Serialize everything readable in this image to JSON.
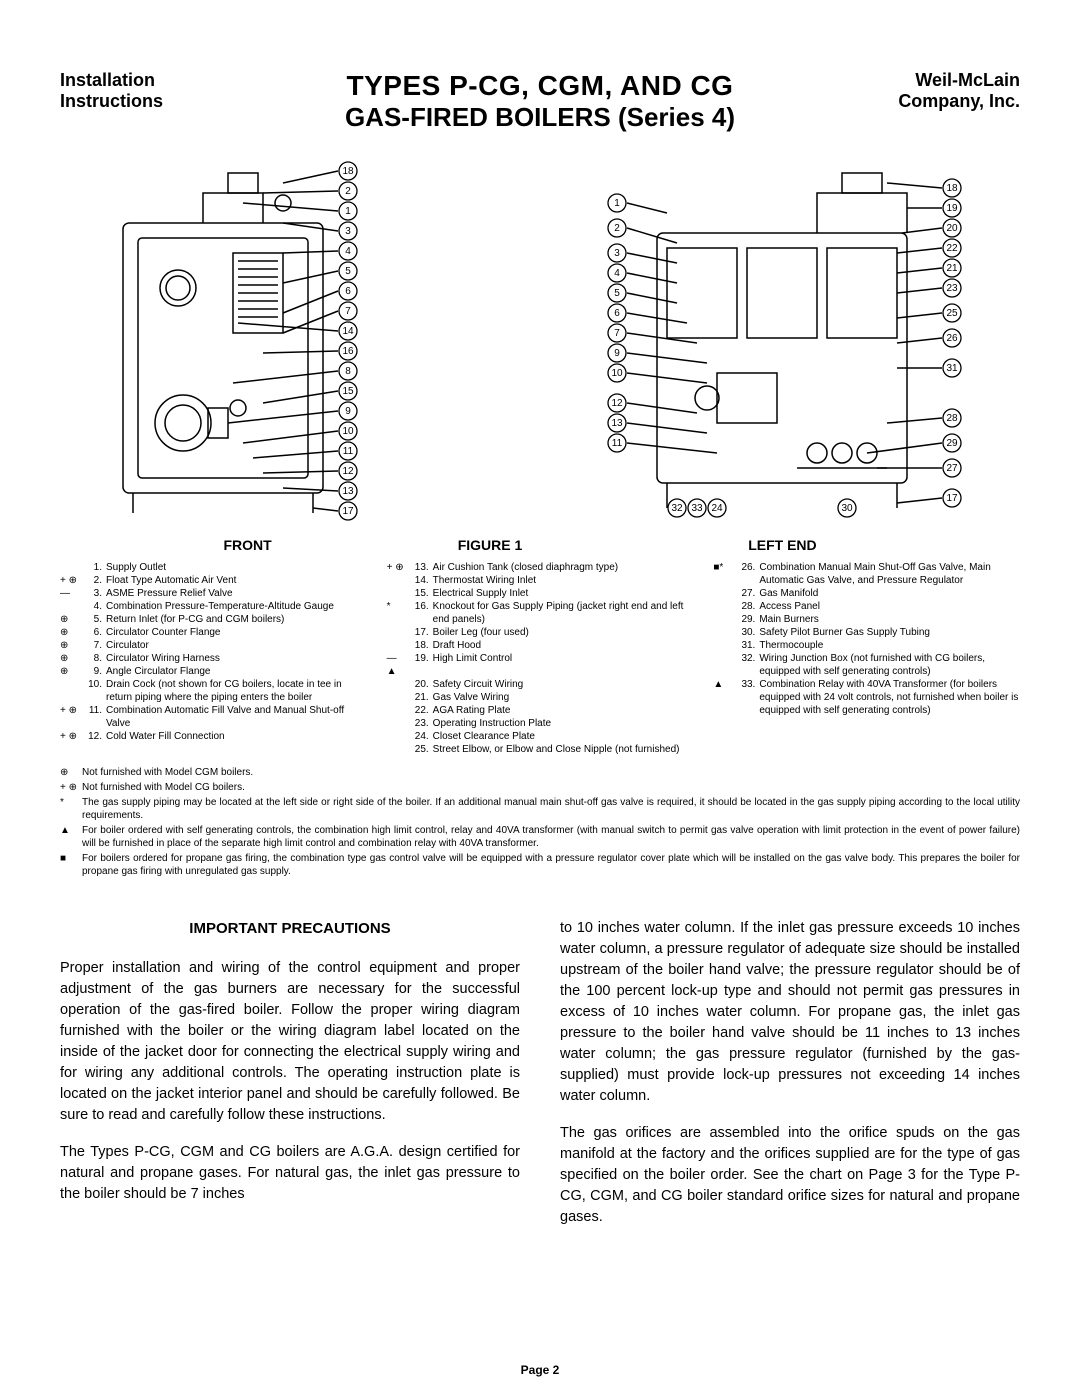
{
  "header": {
    "left_line1": "Installation",
    "left_line2": "Instructions",
    "title1": "TYPES P-CG, CGM, AND CG",
    "title2": "GAS-FIRED BOILERS (Series 4)",
    "right_line1": "Weil-McLain",
    "right_line2": "Company, Inc."
  },
  "figure_labels": {
    "front": "FRONT",
    "center": "FIGURE 1",
    "left_end": "LEFT END"
  },
  "front_callouts": [
    18,
    2,
    1,
    3,
    4,
    5,
    6,
    7,
    14,
    16,
    8,
    15,
    9,
    10,
    11,
    12,
    13,
    17
  ],
  "leftend_left_callouts": [
    1,
    2,
    3,
    4,
    5,
    6,
    7,
    9,
    10,
    12,
    13,
    11,
    32,
    33,
    24
  ],
  "leftend_right_callouts": [
    18,
    19,
    20,
    22,
    21,
    23,
    25,
    26,
    31,
    28,
    29,
    27,
    17,
    30
  ],
  "parts": {
    "col1": [
      {
        "sym": "",
        "num": "1.",
        "txt": "Supply Outlet"
      },
      {
        "sym": "+ ⊕",
        "num": "2.",
        "txt": "Float Type Automatic Air Vent"
      },
      {
        "sym": "—",
        "num": "3.",
        "txt": "ASME Pressure Relief Valve"
      },
      {
        "sym": "",
        "num": "4.",
        "txt": "Combination Pressure-Temperature-Altitude Gauge"
      },
      {
        "sym": "⊕",
        "num": "5.",
        "txt": "Return Inlet (for P-CG and CGM boilers)"
      },
      {
        "sym": "⊕",
        "num": "6.",
        "txt": "Circulator Counter Flange"
      },
      {
        "sym": "⊕",
        "num": "7.",
        "txt": "Circulator"
      },
      {
        "sym": "⊕",
        "num": "8.",
        "txt": "Circulator Wiring Harness"
      },
      {
        "sym": "⊕",
        "num": "9.",
        "txt": "Angle Circulator Flange"
      },
      {
        "sym": "",
        "num": "10.",
        "txt": "Drain Cock (not shown for CG boilers, locate in tee in return piping where the piping enters the boiler"
      },
      {
        "sym": "+ ⊕",
        "num": "11.",
        "txt": "Combination Automatic Fill Valve and Manual Shut-off Valve"
      },
      {
        "sym": "+ ⊕",
        "num": "12.",
        "txt": "Cold Water Fill Connection"
      }
    ],
    "col2": [
      {
        "sym": "+ ⊕",
        "num": "13.",
        "txt": "Air Cushion Tank (closed diaphragm type)"
      },
      {
        "sym": "",
        "num": "14.",
        "txt": "Thermostat Wiring Inlet"
      },
      {
        "sym": "",
        "num": "15.",
        "txt": "Electrical Supply Inlet"
      },
      {
        "sym": "*",
        "num": "16.",
        "txt": "Knockout for Gas Supply Piping (jacket right end and left end panels)"
      },
      {
        "sym": "",
        "num": "17.",
        "txt": "Boiler Leg (four used)"
      },
      {
        "sym": "",
        "num": "18.",
        "txt": "Draft Hood"
      },
      {
        "sym": "— ▲",
        "num": "19.",
        "txt": "High Limit Control"
      },
      {
        "sym": "",
        "num": "20.",
        "txt": "Safety Circuit Wiring"
      },
      {
        "sym": "",
        "num": "21.",
        "txt": "Gas Valve Wiring"
      },
      {
        "sym": "",
        "num": "22.",
        "txt": "AGA Rating Plate"
      },
      {
        "sym": "",
        "num": "23.",
        "txt": "Operating Instruction Plate"
      },
      {
        "sym": "",
        "num": "24.",
        "txt": "Closet Clearance Plate"
      },
      {
        "sym": "",
        "num": "25.",
        "txt": "Street Elbow, or Elbow and Close Nipple (not furnished)"
      }
    ],
    "col3": [
      {
        "sym": "■*",
        "num": "26.",
        "txt": "Combination Manual Main Shut-Off Gas Valve, Main Automatic Gas Valve, and Pressure Regulator"
      },
      {
        "sym": "",
        "num": "27.",
        "txt": "Gas Manifold"
      },
      {
        "sym": "",
        "num": "28.",
        "txt": "Access Panel"
      },
      {
        "sym": "",
        "num": "29.",
        "txt": "Main Burners"
      },
      {
        "sym": "",
        "num": "30.",
        "txt": "Safety Pilot Burner Gas Supply Tubing"
      },
      {
        "sym": "",
        "num": "31.",
        "txt": "Thermocouple"
      },
      {
        "sym": "",
        "num": "32.",
        "txt": "Wiring Junction Box (not furnished with CG boilers, equipped with self generating controls)"
      },
      {
        "sym": "▲",
        "num": "33.",
        "txt": "Combination Relay with 40VA Transformer (for boilers equipped with 24 volt controls, not furnished when boiler is equipped with self generating controls)"
      }
    ]
  },
  "footnotes": [
    {
      "sym": "⊕",
      "txt": "Not furnished with Model CGM boilers."
    },
    {
      "sym": "+ ⊕",
      "txt": "Not furnished with Model CG boilers."
    },
    {
      "sym": "*",
      "txt": "The gas supply piping may be located at the left side or right side of the boiler. If an additional manual main shut-off gas valve is required, it should be located in the gas supply piping according to the local utility requirements."
    },
    {
      "sym": "▲",
      "txt": "For boiler ordered with self generating controls, the combination high limit control, relay and 40VA transformer (with manual switch to permit gas valve operation with limit protection in the event of power failure) will be furnished in place of the separate high limit control and combination relay with 40VA transformer."
    },
    {
      "sym": "■",
      "txt": "For boilers ordered for propane gas firing, the combination type gas control valve will be equipped with a pressure regulator cover plate which will be installed on the gas valve body. This prepares the boiler for propane gas firing with unregulated gas supply."
    }
  ],
  "body": {
    "heading": "IMPORTANT PRECAUTIONS",
    "left_p1": "Proper installation and wiring of the control equipment and proper adjustment of the gas burners are necessary for the successful operation of the gas-fired boiler. Follow the proper wiring diagram furnished with the boiler or the wiring diagram label located on the inside of the jacket door for connecting the electrical supply wiring and for wiring any additional controls. The operating instruction plate is located on the jacket interior panel and should be carefully followed. Be sure to read and carefully follow these instructions.",
    "left_p2": "The Types P-CG, CGM and CG boilers are A.G.A. design certified for natural and propane gases. For natural gas, the inlet gas pressure to the boiler should be 7 inches",
    "right_p1": "to 10 inches water column. If the inlet gas pressure exceeds 10 inches water column, a pressure regulator of adequate size should be installed upstream of the boiler hand valve; the pressure regulator should be of the 100 percent lock-up type and should not permit gas pressures in excess of 10 inches water column. For propane gas, the inlet gas pressure to the boiler hand valve should be 11 inches to 13 inches water column; the gas pressure regulator (furnished by the gas-supplied) must provide lock-up pressures not exceeding 14 inches water column.",
    "right_p2": "The gas orifices are assembled into the orifice spuds on the gas manifold at the factory and the orifices supplied are for the type of gas specified on the boiler order. See the chart on Page 3 for the Type P-CG, CGM, and CG boiler standard orifice sizes for natural and propane gases."
  },
  "page_label": "Page 2",
  "style": {
    "stroke": "#000000",
    "fill": "#ffffff",
    "callout_radius": 9,
    "callout_font": 10
  }
}
